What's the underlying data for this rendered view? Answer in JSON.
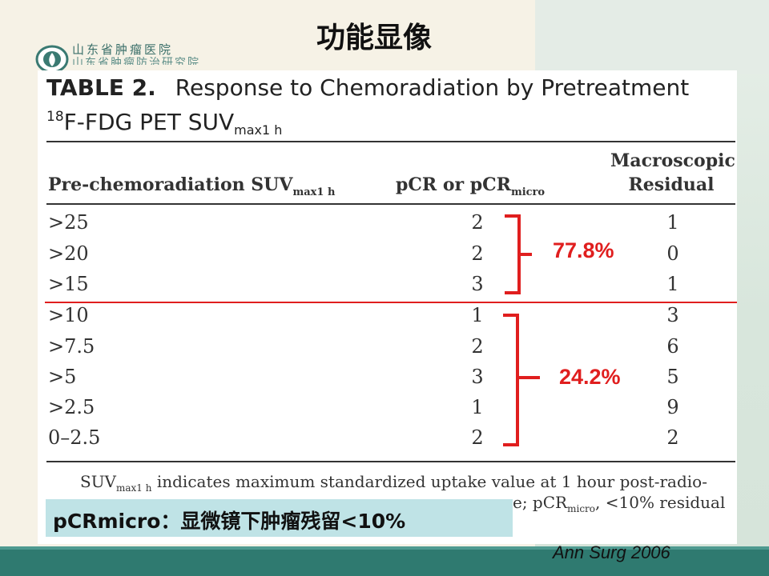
{
  "slide": {
    "title": "功能显像"
  },
  "hospital": {
    "name_line1": "山东省肿瘤医院",
    "name_line2": "山东省肿瘤防治研究院"
  },
  "table": {
    "label": "TABLE 2.",
    "caption_line1": "Response to Chemoradiation by Pretreatment",
    "caption_sup": "18",
    "caption_line2_main": "F-FDG PET SUV",
    "caption_line2_sub": "max1 h",
    "headers": {
      "col1_main": "Pre-chemoradiation SUV",
      "col1_sub": "max1 h",
      "col2_main": "pCR or pCR",
      "col2_sub": "micro",
      "col3_line1": "Macroscopic",
      "col3_line2": "Residual"
    },
    "rows": [
      {
        "threshold": ">25",
        "pcr": "2",
        "residual": "1"
      },
      {
        "threshold": ">20",
        "pcr": "2",
        "residual": "0"
      },
      {
        "threshold": ">15",
        "pcr": "3",
        "residual": "1"
      },
      {
        "threshold": ">10",
        "pcr": "1",
        "residual": "3"
      },
      {
        "threshold": ">7.5",
        "pcr": "2",
        "residual": "6"
      },
      {
        "threshold": ">5",
        "pcr": "3",
        "residual": "5"
      },
      {
        "threshold": ">2.5",
        "pcr": "1",
        "residual": "9"
      },
      {
        "threshold": "0–2.5",
        "pcr": "2",
        "residual": "2"
      }
    ],
    "footnote": {
      "part1_main": "SUV",
      "part1_sub": "max1 h",
      "part1_rest": " indicates maximum standardized uptake value at 1 hour post-radio-",
      "part2_main": "e; pCR",
      "part2_sub": "micro",
      "part2_rest": ", <10% residual"
    }
  },
  "annotations": {
    "upper_percent": "77.8%",
    "lower_percent": "24.2%",
    "color": "#e01e1e"
  },
  "note": {
    "text": "pCRmicro：显微镜下肿瘤残留<10%"
  },
  "citation": {
    "text": "Ann Surg 2006"
  }
}
